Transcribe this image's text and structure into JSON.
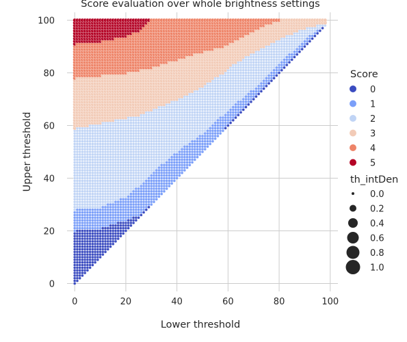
{
  "chart_data": {
    "type": "scatter",
    "title": "Score evaluation over whole brightness settings",
    "xlabel": "Lower threshold",
    "ylabel": "Upper threshold",
    "xlim": [
      -3,
      103
    ],
    "ylim": [
      -3,
      103
    ],
    "xticks": [
      0,
      20,
      40,
      60,
      80,
      100
    ],
    "yticks": [
      0,
      20,
      40,
      60,
      80,
      100
    ],
    "grid": true,
    "legend_placement": "right",
    "hue": {
      "title": "Score",
      "levels": [
        {
          "label": "0",
          "color": "#3b4cc0"
        },
        {
          "label": "1",
          "color": "#7b9ff9"
        },
        {
          "label": "2",
          "color": "#c0d4f5"
        },
        {
          "label": "3",
          "color": "#f2cbb7"
        },
        {
          "label": "4",
          "color": "#ee8468"
        },
        {
          "label": "5",
          "color": "#b40426"
        }
      ]
    },
    "size": {
      "title": "th_intDen",
      "levels": [
        "0.0",
        "0.2",
        "0.4",
        "0.6",
        "0.8",
        "1.0"
      ]
    },
    "grid_points": {
      "x_range": [
        0,
        98
      ],
      "y_range": [
        0,
        100
      ],
      "step": 1,
      "rule": "y >= x"
    },
    "score_boundaries": {
      "lower_threshold": [
        0,
        10,
        20,
        25,
        30,
        40,
        50,
        58,
        60,
        70,
        74,
        80,
        85,
        90,
        98
      ],
      "score_0_1": [
        20,
        21,
        24,
        26,
        30,
        40,
        50,
        58,
        61,
        71,
        75,
        81,
        86,
        91,
        98
      ],
      "score_1_2": [
        28,
        29,
        33,
        37,
        42,
        50,
        57,
        64,
        66,
        74,
        78,
        84,
        88,
        93,
        98
      ],
      "score_2_3": [
        59,
        61,
        63,
        64,
        66,
        70,
        75,
        80,
        82,
        88,
        90,
        93,
        95,
        97,
        99
      ],
      "score_3_4": [
        78,
        79,
        80,
        81,
        82,
        85,
        88,
        90,
        91,
        96,
        98,
        100,
        101,
        101,
        101
      ],
      "score_4_5": [
        91,
        92,
        94,
        96,
        101,
        101,
        101,
        101,
        101,
        101,
        101,
        101,
        101,
        101,
        101
      ]
    }
  }
}
